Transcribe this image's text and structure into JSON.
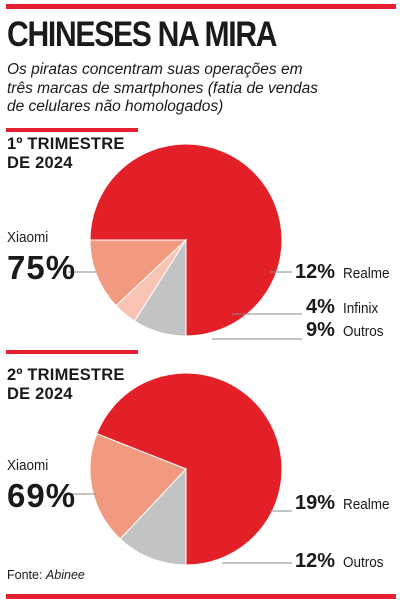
{
  "header": {
    "title": "CHINESES NA MIRA",
    "subtitle": "Os piratas concentram suas operações em três marcas de smartphones (fatia de vendas de celulares não homologados)"
  },
  "colors": {
    "accent": "#e52030",
    "xiaomi": "#e32028",
    "realme": "#f29a80",
    "infinix": "#f7c4b4",
    "outros": "#c2c3c5"
  },
  "chart_data": [
    {
      "type": "pie",
      "title": "1º TRIMESTRE\nDE 2024",
      "slices": [
        {
          "label": "Xiaomi",
          "value": 75,
          "display": "75%"
        },
        {
          "label": "Realme",
          "value": 12,
          "display": "12%"
        },
        {
          "label": "Infinix",
          "value": 4,
          "display": "4%"
        },
        {
          "label": "Outros",
          "value": 9,
          "display": "9%"
        }
      ]
    },
    {
      "type": "pie",
      "title": "2º TRIMESTRE\nDE 2024",
      "slices": [
        {
          "label": "Xiaomi",
          "value": 69,
          "display": "69%"
        },
        {
          "label": "Realme",
          "value": 19,
          "display": "19%"
        },
        {
          "label": "Outros",
          "value": 12,
          "display": "12%"
        }
      ]
    }
  ],
  "footer": {
    "source_label": "Fonte:",
    "source_name": "Abinee"
  }
}
